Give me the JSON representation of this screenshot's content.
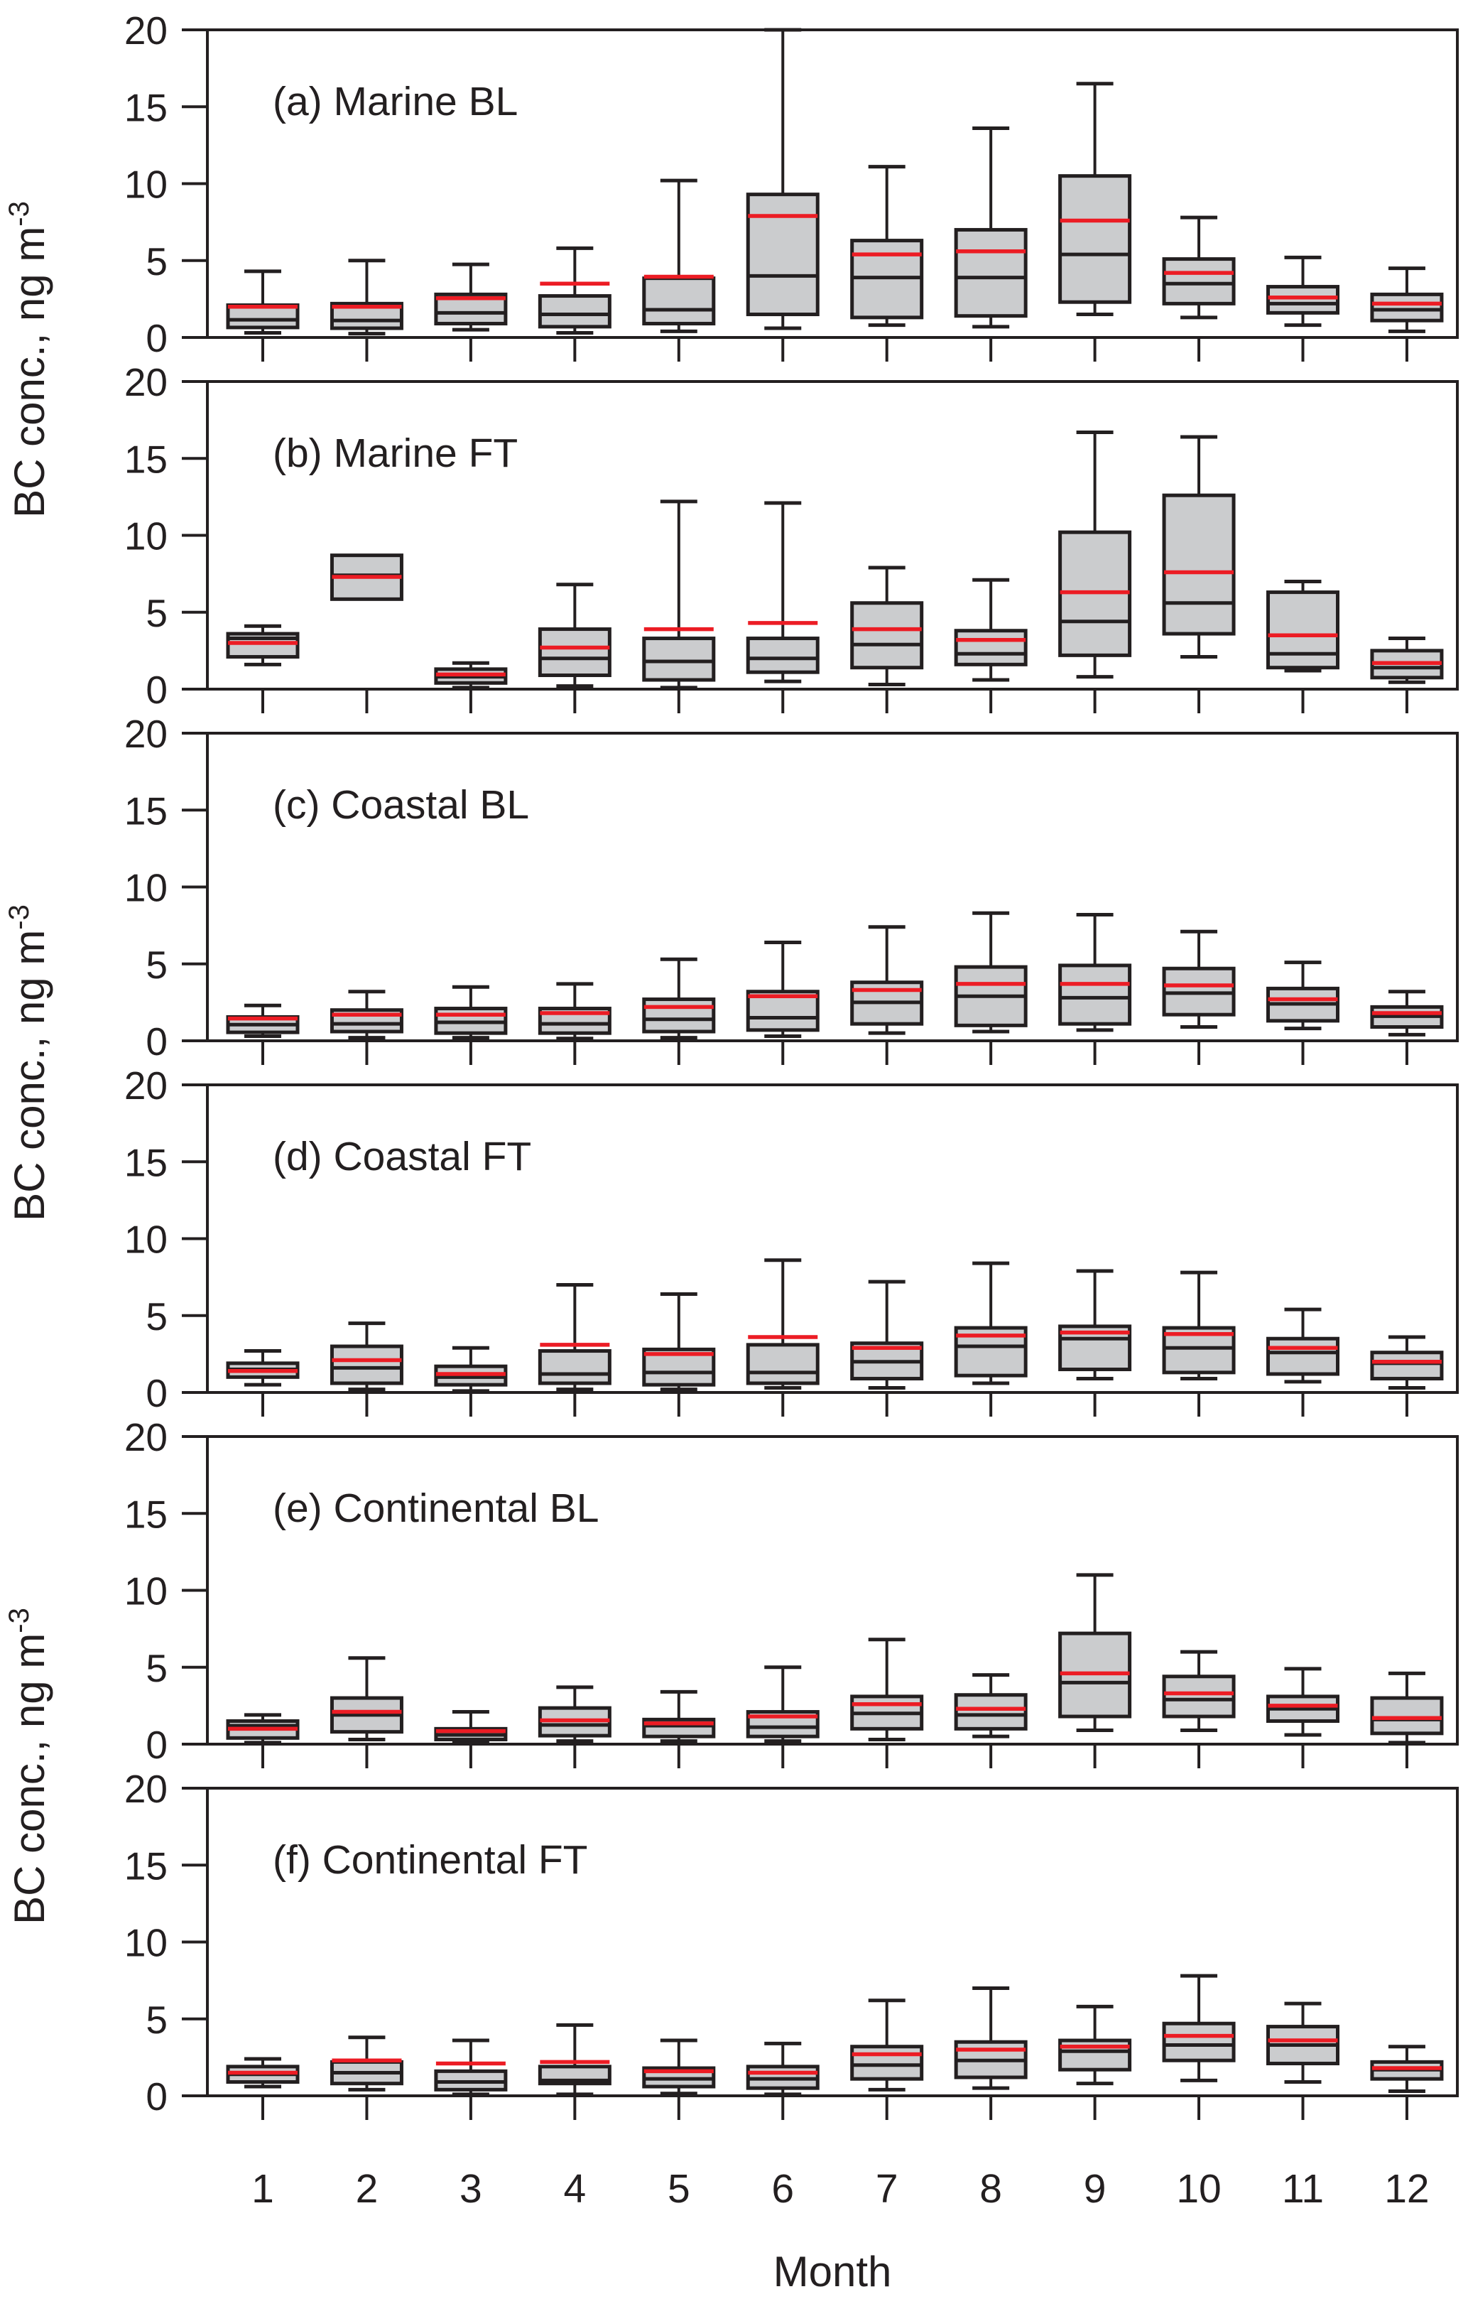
{
  "figure": {
    "background": "#ffffff",
    "colors": {
      "axis": "#231f20",
      "text": "#231f20",
      "box_fill": "#cbccce",
      "box_stroke": "#231f20",
      "median_line": "#231f20",
      "mean_line": "#ec1c24"
    },
    "xlabel": "Month",
    "ylabel_main": "BC conc., ng m",
    "ylabel_sup": "-3"
  },
  "chart_data": {
    "type": "boxplot",
    "title": "",
    "xlabel": "Month",
    "ylabel": "BC conc., ng m^-3",
    "x": [
      1,
      2,
      3,
      4,
      5,
      6,
      7,
      8,
      9,
      10,
      11,
      12
    ],
    "x_tick_labels": [
      "1",
      "2",
      "3",
      "4",
      "5",
      "6",
      "7",
      "8",
      "9",
      "10",
      "11",
      "12"
    ],
    "ylim": [
      0,
      20
    ],
    "yticks": [
      0,
      5,
      10,
      15,
      20
    ],
    "ytick_labels": [
      "0",
      "5",
      "10",
      "15",
      "20"
    ],
    "grid": false,
    "legend": "none",
    "mean_line_color": "#ec1c24",
    "stat_keys": [
      "whisker_low",
      "q1",
      "median",
      "mean",
      "q3",
      "whisker_high"
    ],
    "panels": [
      {
        "id": "a",
        "label": "(a) Marine BL",
        "months": [
          [
            0.3,
            0.65,
            1.15,
            2.0,
            2.1,
            4.3
          ],
          [
            0.25,
            0.6,
            1.1,
            2.0,
            2.2,
            5.0
          ],
          [
            0.5,
            0.9,
            1.6,
            2.55,
            2.8,
            4.75
          ],
          [
            0.3,
            0.7,
            1.5,
            3.5,
            2.7,
            5.8
          ],
          [
            0.4,
            0.9,
            1.8,
            3.95,
            3.85,
            10.2
          ],
          [
            0.6,
            1.5,
            4.0,
            7.9,
            9.3,
            20.0
          ],
          [
            0.8,
            1.3,
            3.9,
            5.4,
            6.3,
            11.1
          ],
          [
            0.7,
            1.4,
            3.9,
            5.6,
            7.0,
            13.6
          ],
          [
            1.5,
            2.3,
            5.4,
            7.6,
            10.5,
            16.5
          ],
          [
            1.3,
            2.2,
            3.5,
            4.2,
            5.1,
            7.8
          ],
          [
            0.8,
            1.6,
            2.2,
            2.6,
            3.3,
            5.2
          ],
          [
            0.4,
            1.1,
            1.8,
            2.2,
            2.8,
            4.5
          ]
        ]
      },
      {
        "id": "b",
        "label": "(b) Marine FT",
        "months": [
          [
            1.6,
            2.1,
            3.3,
            3.0,
            3.6,
            4.1
          ],
          [
            5.85,
            5.85,
            7.4,
            7.3,
            8.7,
            8.7
          ],
          [
            0.1,
            0.4,
            0.8,
            0.95,
            1.3,
            1.7
          ],
          [
            0.2,
            0.9,
            2.0,
            2.7,
            3.9,
            6.8
          ],
          [
            0.1,
            0.6,
            1.8,
            3.9,
            3.3,
            12.2
          ],
          [
            0.5,
            1.1,
            2.0,
            4.3,
            3.3,
            12.1
          ],
          [
            0.3,
            1.4,
            2.9,
            3.9,
            5.6,
            7.9
          ],
          [
            0.6,
            1.6,
            2.3,
            3.2,
            3.8,
            7.1
          ],
          [
            0.8,
            2.2,
            4.4,
            6.3,
            10.2,
            16.7
          ],
          [
            2.1,
            3.6,
            5.6,
            7.6,
            12.6,
            16.4
          ],
          [
            1.2,
            1.4,
            2.3,
            3.5,
            6.3,
            7.0
          ],
          [
            0.45,
            0.75,
            1.4,
            1.7,
            2.5,
            3.3
          ]
        ]
      },
      {
        "id": "c",
        "label": "(c) Coastal BL",
        "months": [
          [
            0.3,
            0.55,
            1.05,
            1.45,
            1.55,
            2.3
          ],
          [
            0.2,
            0.6,
            1.1,
            1.7,
            2.0,
            3.2
          ],
          [
            0.2,
            0.5,
            1.2,
            1.7,
            2.1,
            3.5
          ],
          [
            0.15,
            0.5,
            1.1,
            1.8,
            2.1,
            3.7
          ],
          [
            0.2,
            0.6,
            1.4,
            2.2,
            2.7,
            5.3
          ],
          [
            0.3,
            0.7,
            1.5,
            2.9,
            3.2,
            6.4
          ],
          [
            0.5,
            1.1,
            2.5,
            3.3,
            3.8,
            7.4
          ],
          [
            0.6,
            1.0,
            2.9,
            3.7,
            4.8,
            8.3
          ],
          [
            0.7,
            1.1,
            2.8,
            3.7,
            4.9,
            8.2
          ],
          [
            0.9,
            1.7,
            3.1,
            3.6,
            4.7,
            7.1
          ],
          [
            0.8,
            1.3,
            2.4,
            2.7,
            3.4,
            5.1
          ],
          [
            0.4,
            0.9,
            1.6,
            1.8,
            2.2,
            3.2
          ]
        ]
      },
      {
        "id": "d",
        "label": "(d) Coastal FT",
        "months": [
          [
            0.5,
            1.0,
            1.5,
            1.4,
            1.9,
            2.7
          ],
          [
            0.2,
            0.6,
            1.6,
            2.1,
            3.0,
            4.5
          ],
          [
            0.1,
            0.5,
            1.0,
            1.2,
            1.7,
            2.9
          ],
          [
            0.2,
            0.6,
            1.2,
            3.1,
            2.7,
            7.0
          ],
          [
            0.2,
            0.5,
            1.3,
            2.5,
            2.8,
            6.4
          ],
          [
            0.3,
            0.6,
            1.3,
            3.6,
            3.1,
            8.6
          ],
          [
            0.3,
            0.9,
            2.0,
            2.9,
            3.2,
            7.2
          ],
          [
            0.6,
            1.1,
            3.0,
            3.7,
            4.2,
            8.4
          ],
          [
            0.9,
            1.5,
            3.5,
            3.9,
            4.3,
            7.9
          ],
          [
            0.9,
            1.3,
            2.9,
            3.8,
            4.2,
            7.8
          ],
          [
            0.7,
            1.2,
            2.6,
            2.9,
            3.5,
            5.4
          ],
          [
            0.3,
            0.9,
            1.9,
            2.0,
            2.6,
            3.6
          ]
        ]
      },
      {
        "id": "e",
        "label": "(e) Continental BL",
        "months": [
          [
            0.1,
            0.4,
            1.2,
            1.0,
            1.5,
            1.9
          ],
          [
            0.3,
            0.8,
            1.9,
            2.1,
            3.0,
            5.6
          ],
          [
            0.1,
            0.3,
            0.6,
            0.85,
            1.0,
            2.1
          ],
          [
            0.2,
            0.55,
            1.25,
            1.55,
            2.35,
            3.7
          ],
          [
            0.2,
            0.5,
            1.2,
            1.35,
            1.6,
            3.4
          ],
          [
            0.2,
            0.5,
            1.1,
            1.8,
            2.1,
            5.0
          ],
          [
            0.3,
            1.0,
            2.0,
            2.6,
            3.1,
            6.8
          ],
          [
            0.5,
            1.0,
            1.9,
            2.3,
            3.2,
            4.5
          ],
          [
            0.9,
            1.8,
            4.0,
            4.6,
            7.2,
            11.0
          ],
          [
            0.9,
            1.8,
            2.9,
            3.3,
            4.4,
            6.0
          ],
          [
            0.6,
            1.5,
            2.3,
            2.5,
            3.1,
            4.9
          ],
          [
            0.1,
            0.7,
            1.6,
            1.7,
            3.0,
            4.6
          ]
        ]
      },
      {
        "id": "f",
        "label": "(f) Continental FT",
        "months": [
          [
            0.6,
            0.9,
            1.4,
            1.5,
            1.9,
            2.4
          ],
          [
            0.4,
            0.8,
            1.5,
            2.3,
            2.2,
            3.8
          ],
          [
            0.1,
            0.4,
            0.9,
            2.1,
            1.6,
            3.6
          ],
          [
            0.1,
            0.8,
            1.0,
            2.2,
            1.9,
            4.6
          ],
          [
            0.15,
            0.6,
            1.1,
            1.6,
            1.8,
            3.6
          ],
          [
            0.1,
            0.5,
            1.1,
            1.5,
            1.9,
            3.4
          ],
          [
            0.4,
            1.1,
            2.0,
            2.7,
            3.2,
            6.2
          ],
          [
            0.5,
            1.2,
            2.3,
            3.0,
            3.5,
            7.0
          ],
          [
            0.8,
            1.7,
            2.9,
            3.2,
            3.6,
            5.8
          ],
          [
            1.0,
            2.3,
            3.3,
            3.9,
            4.7,
            7.8
          ],
          [
            0.9,
            2.1,
            3.3,
            3.6,
            4.5,
            6.0
          ],
          [
            0.3,
            1.1,
            1.7,
            1.8,
            2.2,
            3.2
          ]
        ]
      }
    ]
  }
}
